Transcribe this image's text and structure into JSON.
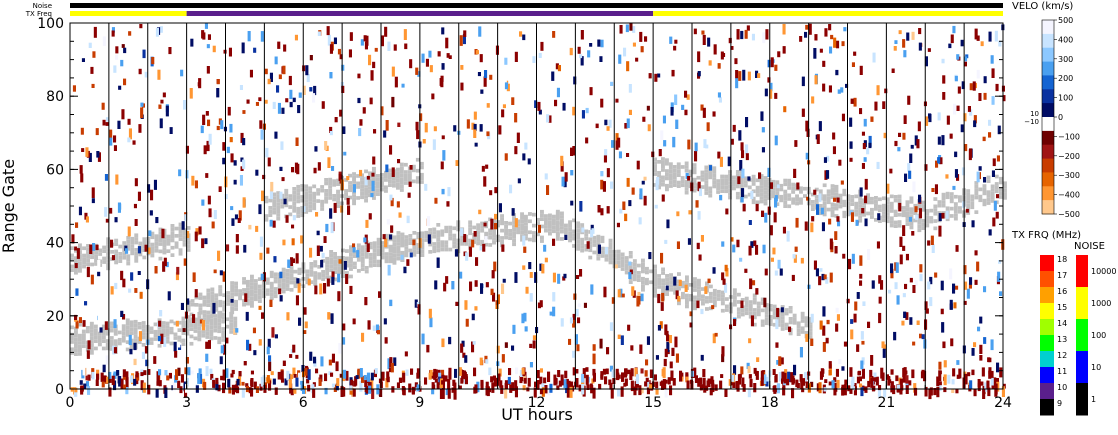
{
  "header": {
    "noise_label": "Noise",
    "txfreq_label": "TX Freq"
  },
  "chart_data": {
    "type": "heatmap",
    "xlabel": "UT hours",
    "ylabel": "Range Gate",
    "xlim": [
      0,
      24
    ],
    "ylim": [
      0,
      100
    ],
    "xticks": [
      0,
      3,
      6,
      9,
      12,
      15,
      18,
      21,
      24
    ],
    "yticks": [
      0,
      20,
      40,
      60,
      80,
      100
    ],
    "scan_boundaries_hours": [
      1,
      2,
      3,
      4,
      5,
      6,
      7,
      8,
      9,
      10,
      11,
      12,
      13,
      14,
      15,
      16,
      17,
      18,
      19,
      20,
      21,
      22,
      23
    ],
    "noise_bar": {
      "color": "#000000",
      "segments": [
        [
          0,
          24
        ]
      ]
    },
    "txfreq_bar": {
      "segments": [
        {
          "start": 0,
          "end": 3,
          "color": "#ffff00"
        },
        {
          "start": 3,
          "end": 15,
          "color": "#5a1f8c"
        },
        {
          "start": 15,
          "end": 24,
          "color": "#ffff00"
        }
      ]
    },
    "ground_scatter_color": "#c0c0c0",
    "ground_scatter_bands": [
      {
        "h_start": 0,
        "h_end": 4.2,
        "gate_start": 14,
        "gate_end": 18,
        "note": ""
      },
      {
        "h_start": 0,
        "h_end": 3.0,
        "gate_start": 36,
        "gate_end": 42
      },
      {
        "h_start": 3,
        "h_end": 8.5,
        "gate_start": 22,
        "gate_end": 40
      },
      {
        "h_start": 8.5,
        "h_end": 12.5,
        "gate_start": 40,
        "gate_end": 46
      },
      {
        "h_start": 12.5,
        "h_end": 15,
        "gate_start": 46,
        "gate_end": 30
      },
      {
        "h_start": 15,
        "h_end": 19,
        "gate_start": 30,
        "gate_end": 18
      },
      {
        "h_start": 15,
        "h_end": 22,
        "gate_start": 60,
        "gate_end": 48
      },
      {
        "h_start": 22,
        "h_end": 24,
        "gate_start": 48,
        "gate_end": 56
      },
      {
        "h_start": 5,
        "h_end": 9,
        "gate_start": 50,
        "gate_end": 60
      }
    ],
    "velocity_scale": {
      "title": "VELO (km/s)",
      "range": [
        -500,
        500
      ],
      "ticks": [
        500,
        400,
        300,
        200,
        100,
        0,
        -100,
        -200,
        -300,
        -400,
        -500
      ],
      "ticks_label": [
        "500",
        "400",
        "300",
        "200",
        "100",
        "0",
        "−100",
        "−200",
        "−300",
        "−400",
        "−500"
      ],
      "threshold_labels": [
        "10",
        "−10"
      ],
      "colors": [
        "#f5f5ff",
        "#c8e4ff",
        "#8cc8ff",
        "#4aa0f0",
        "#1464d2",
        "#0a32a0",
        "#000c64",
        "#ffffff",
        "#6e0000",
        "#a01414",
        "#c83c00",
        "#e66400",
        "#ff9632",
        "#ffc88c"
      ]
    },
    "txfreq_scale": {
      "title": "TX FRQ (MHz)",
      "ticks": [
        18,
        17,
        16,
        15,
        14,
        13,
        12,
        11,
        10,
        9
      ],
      "colors": [
        "#ff0000",
        "#ff5000",
        "#ffa000",
        "#ffff00",
        "#a0ff00",
        "#00ff00",
        "#00d0d0",
        "#0000ff",
        "#5a1f8c",
        "#000000"
      ]
    },
    "noise_scale": {
      "title": "NOISE",
      "ticks": [
        "10000",
        "1000",
        "100",
        "10",
        "1"
      ],
      "colors": [
        "#ff0000",
        "#ffff00",
        "#00ff00",
        "#0000ff",
        "#000000"
      ]
    }
  }
}
